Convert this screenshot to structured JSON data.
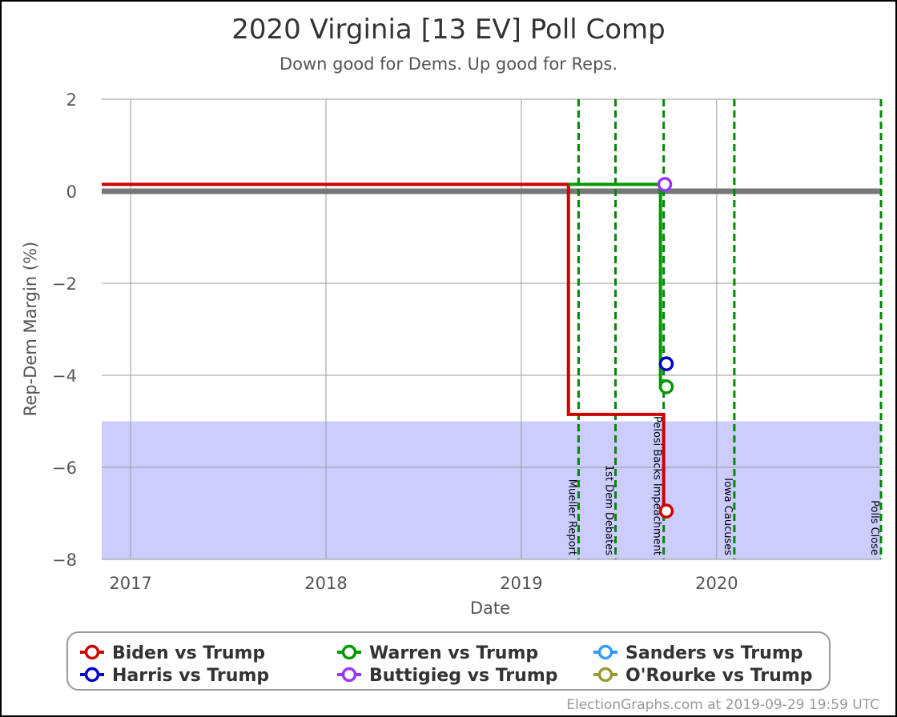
{
  "chart_data": {
    "type": "line",
    "title": "2020 Virginia [13 EV] Poll Comp",
    "subtitle": "Down good for Dems. Up good for Reps.",
    "xlabel": "Date",
    "ylabel": "Rep-Dem Margin (%)",
    "xlim": [
      "2016-11-08",
      "2020-11-03"
    ],
    "ylim": [
      -8,
      2
    ],
    "y_ticks": [
      2,
      0,
      -2,
      -4,
      -6,
      -8
    ],
    "y_tick_labels": [
      "2",
      "0",
      "−2",
      "−4",
      "−6",
      "−8"
    ],
    "x_ticks": [
      {
        "date": "2017-01-01",
        "label": "2017"
      },
      {
        "date": "2018-01-01",
        "label": "2018"
      },
      {
        "date": "2019-01-01",
        "label": "2019"
      },
      {
        "date": "2020-01-01",
        "label": "2020"
      }
    ],
    "shaded_band": {
      "y_from": -8,
      "y_to": -5,
      "color": "#ccccff"
    },
    "event_lines": [
      {
        "date": "2019-04-18",
        "label": "Mueller Report"
      },
      {
        "date": "2019-06-26",
        "label": "1st Dem Debates"
      },
      {
        "date": "2019-09-24",
        "label": "Pelosi Backs Impeachment"
      },
      {
        "date": "2020-02-03",
        "label": "Iowa Caucuses"
      },
      {
        "date": "2020-11-03",
        "label": "Polls Close"
      }
    ],
    "series": [
      {
        "name": "Biden vs Trump",
        "color": "#cc0000",
        "points": [
          [
            "2016-11-08",
            0.15
          ],
          [
            "2019-03-30",
            0.15
          ],
          [
            "2019-03-30",
            -4.85
          ],
          [
            "2019-09-24",
            -4.85
          ],
          [
            "2019-09-24",
            -6.95
          ],
          [
            "2019-09-29",
            -6.95
          ]
        ],
        "last": [
          "2019-09-29",
          -6.95
        ]
      },
      {
        "name": "Warren vs Trump",
        "color": "#009900",
        "points": [
          [
            "2019-03-30",
            0.15
          ],
          [
            "2019-09-18",
            0.15
          ],
          [
            "2019-09-18",
            -4.25
          ],
          [
            "2019-09-29",
            -4.25
          ]
        ],
        "last": [
          "2019-09-29",
          -4.25
        ]
      },
      {
        "name": "Sanders vs Trump",
        "color": "#3399ff",
        "points": [],
        "last": null
      },
      {
        "name": "Harris vs Trump",
        "color": "#0000cc",
        "points": [],
        "last": [
          "2019-09-29",
          -3.75
        ]
      },
      {
        "name": "Buttigieg vs Trump",
        "color": "#9933ff",
        "points": [],
        "last": [
          "2019-09-26",
          0.15
        ]
      },
      {
        "name": "O'Rourke vs Trump",
        "color": "#999933",
        "points": [],
        "last": null
      }
    ],
    "legend_position": "bottom",
    "grid": true
  },
  "footer": "ElectionGraphs.com at 2019-09-29 19:59 UTC"
}
